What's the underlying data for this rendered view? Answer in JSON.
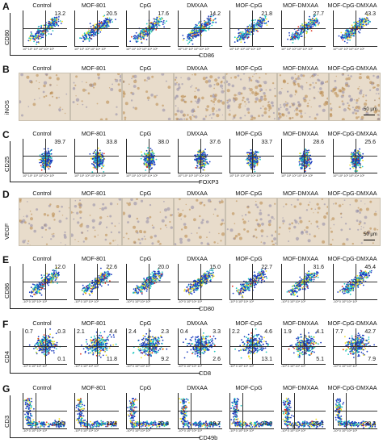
{
  "groups": [
    "Control",
    "MOF-801",
    "CpG",
    "DMXAA",
    "MOF-CpG",
    "MOF-DMXAA",
    "MOF-CpG-DMXAA"
  ],
  "panels": {
    "A": {
      "letter": "A",
      "ylabel": "CD80",
      "xlabel": "CD86",
      "values": [
        "13.2",
        "20.5",
        "17.6",
        "14.2",
        "21.8",
        "27.7",
        "43.3"
      ]
    },
    "B": {
      "letter": "B",
      "ylabel": "iNOS",
      "scalebar": "50 μm"
    },
    "C": {
      "letter": "C",
      "ylabel": "CD25",
      "xlabel": "FOXP3",
      "values": [
        "39.7",
        "33.8",
        "38.0",
        "37.6",
        "33.7",
        "28.6",
        "25.6"
      ]
    },
    "D": {
      "letter": "D",
      "ylabel": "VEGF",
      "scalebar": "50 μm"
    },
    "E": {
      "letter": "E",
      "ylabel": "CD86",
      "xlabel": "CD80",
      "values": [
        "12.0",
        "22.6",
        "20.0",
        "15.0",
        "22.7",
        "31.6",
        "45.4"
      ]
    },
    "F": {
      "letter": "F",
      "ylabel": "CD4",
      "xlabel": "CD8",
      "quadrants": [
        {
          "ul": "0.7",
          "ur": "0.3",
          "lr": "0.1"
        },
        {
          "ul": "2.1",
          "ur": "4.4",
          "lr": "11.8"
        },
        {
          "ul": "2.4",
          "ur": "2.3",
          "lr": "9.2"
        },
        {
          "ul": "0.4",
          "ur": "3.3",
          "lr": "2.6"
        },
        {
          "ul": "2.2",
          "ur": "4.6",
          "lr": "13.1"
        },
        {
          "ul": "1.9",
          "ur": "4.1",
          "lr": "5.1"
        },
        {
          "ul": "7.7",
          "ur": "42.7",
          "lr": "7.9"
        }
      ]
    },
    "G": {
      "letter": "G",
      "ylabel": "CD3",
      "xlabel": "CD49b",
      "values": [
        "19.5",
        "22.4",
        "20.3",
        "19.7",
        "23.8",
        "25.1",
        "38.3"
      ]
    }
  },
  "tick_labels": {
    "log": "10⁰ 10¹ 10² 10³ 10⁴ 10⁵",
    "sym": "-10³ 0 10³ 10⁴ 10⁵"
  },
  "colors": {
    "density_low": "#1f3fbf",
    "density_mid": "#22c8c0",
    "density_high": "#f0e020",
    "density_peak": "#e03020",
    "tissue": "#e8dccb",
    "stain": "#b8894a"
  }
}
